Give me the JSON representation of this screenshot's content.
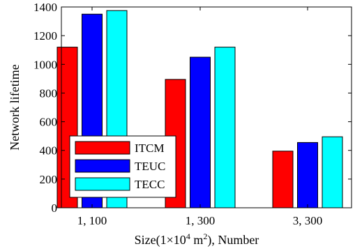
{
  "chart_data": {
    "type": "bar",
    "categories": [
      "1,  100",
      "1,  300",
      "3,  300"
    ],
    "series": [
      {
        "name": "ITCM",
        "color": "#ff0000",
        "values": [
          1120,
          895,
          395
        ]
      },
      {
        "name": "TEUC",
        "color": "#0000ff",
        "values": [
          1350,
          1050,
          455
        ]
      },
      {
        "name": "TECC",
        "color": "#00ffff",
        "values": [
          1375,
          1120,
          495
        ]
      }
    ],
    "xlabel": {
      "prefix": "Size(1×10",
      "sup1": "4",
      "middle": " m",
      "sup2": "2",
      "suffix": "), Number"
    },
    "ylabel": "Network lifetime",
    "ylim": [
      0,
      1400
    ],
    "yticks": [
      0,
      200,
      400,
      600,
      800,
      1000,
      1200,
      1400
    ],
    "grid": false,
    "legend_position": "lower-left"
  }
}
